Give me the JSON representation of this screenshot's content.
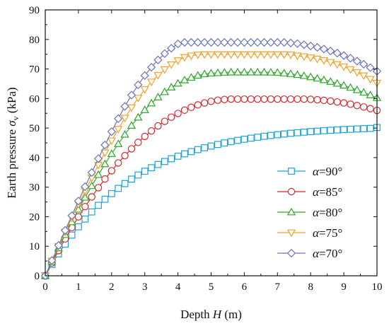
{
  "chart_data": {
    "type": "line",
    "xlabel_parts": [
      "Depth ",
      "H",
      " (m)"
    ],
    "ylabel_parts": [
      "Earth pressure ",
      "σ",
      "v",
      " (kPa)"
    ],
    "xlim": [
      0,
      10
    ],
    "ylim": [
      0,
      90
    ],
    "xticks": [
      0,
      1,
      2,
      3,
      4,
      5,
      6,
      7,
      8,
      9,
      10
    ],
    "yticks": [
      0,
      10,
      20,
      30,
      40,
      50,
      60,
      70,
      80,
      90
    ],
    "grid": false,
    "legend_position": "lower-right",
    "x": [
      0,
      0.2,
      0.4,
      0.6,
      0.8,
      1.0,
      1.2,
      1.4,
      1.6,
      1.8,
      2.0,
      2.2,
      2.4,
      2.6,
      2.8,
      3.0,
      3.2,
      3.4,
      3.6,
      3.8,
      4.0,
      4.2,
      4.4,
      4.6,
      4.8,
      5.0,
      5.2,
      5.4,
      5.6,
      5.8,
      6.0,
      6.2,
      6.4,
      6.6,
      6.8,
      7.0,
      7.2,
      7.4,
      7.6,
      7.8,
      8.0,
      8.2,
      8.4,
      8.6,
      8.8,
      9.0,
      9.2,
      9.4,
      9.6,
      9.8,
      10.0
    ],
    "series": [
      {
        "label_symbol": "α",
        "label_value": "=90°",
        "marker": "square",
        "color": "#1aa3d9",
        "values": [
          0.0,
          3.85,
          7.41,
          10.71,
          13.76,
          16.58,
          19.2,
          21.61,
          23.85,
          25.91,
          27.82,
          29.58,
          31.21,
          32.72,
          34.11,
          35.39,
          36.58,
          37.68,
          38.69,
          39.63,
          40.49,
          41.29,
          42.03,
          42.71,
          43.34,
          43.92,
          44.45,
          44.95,
          45.41,
          45.83,
          46.22,
          46.58,
          46.91,
          47.22,
          47.5,
          47.76,
          48.0,
          48.23,
          48.43,
          48.62,
          48.8,
          48.96,
          49.11,
          49.25,
          49.37,
          49.49,
          49.6,
          49.7,
          49.79,
          49.88,
          50.2
        ]
      },
      {
        "label_symbol": "α",
        "label_value": "=85°",
        "marker": "circle",
        "color": "#d9262b",
        "values": [
          0.0,
          4.35,
          8.52,
          12.51,
          16.32,
          19.95,
          23.41,
          26.7,
          29.82,
          32.77,
          35.57,
          38.2,
          40.67,
          42.99,
          45.16,
          47.17,
          49.03,
          50.73,
          52.29,
          53.7,
          54.96,
          56.07,
          57.03,
          57.85,
          58.52,
          59.05,
          59.44,
          59.68,
          59.8,
          59.8,
          59.8,
          59.8,
          59.8,
          59.8,
          59.8,
          59.8,
          59.8,
          59.8,
          59.8,
          59.8,
          59.73,
          59.58,
          59.39,
          59.14,
          58.85,
          58.5,
          58.09,
          57.64,
          57.14,
          56.58,
          55.97
        ]
      },
      {
        "label_symbol": "α",
        "label_value": "=80°",
        "marker": "triangle-up",
        "color": "#2ea82a",
        "values": [
          0.0,
          4.76,
          9.39,
          13.88,
          18.23,
          22.44,
          26.51,
          30.43,
          34.2,
          37.83,
          41.31,
          44.65,
          47.83,
          50.85,
          53.63,
          56.15,
          58.42,
          60.45,
          62.24,
          63.8,
          65.12,
          66.23,
          67.12,
          67.8,
          68.28,
          68.57,
          68.67,
          68.8,
          68.9,
          68.9,
          68.9,
          68.9,
          68.9,
          68.9,
          68.85,
          68.77,
          68.58,
          68.34,
          68.04,
          67.68,
          67.28,
          66.81,
          66.3,
          65.73,
          65.1,
          64.43,
          63.7,
          62.91,
          62.07,
          61.18,
          60.23
        ]
      },
      {
        "label_symbol": "α",
        "label_value": "=75°",
        "marker": "triangle-down",
        "color": "#f5a02a",
        "values": [
          0.0,
          5.05,
          10.0,
          14.85,
          19.6,
          24.24,
          28.77,
          33.18,
          37.48,
          41.66,
          45.72,
          49.65,
          53.43,
          56.95,
          60.17,
          63.07,
          65.64,
          67.9,
          69.85,
          71.5,
          72.86,
          73.95,
          74.5,
          74.8,
          74.9,
          74.9,
          74.9,
          74.9,
          74.9,
          74.9,
          74.9,
          74.9,
          74.9,
          74.9,
          74.9,
          74.9,
          74.9,
          74.83,
          74.5,
          74.2,
          73.84,
          73.43,
          72.91,
          72.29,
          71.58,
          70.77,
          69.86,
          68.86,
          67.76,
          66.57,
          65.28
        ]
      },
      {
        "label_symbol": "α",
        "label_value": "=70°",
        "marker": "diamond",
        "color": "#6a74c0",
        "values": [
          0.0,
          5.17,
          10.3,
          15.36,
          20.37,
          25.3,
          30.17,
          34.95,
          39.66,
          44.27,
          48.79,
          53.21,
          57.34,
          61.15,
          64.63,
          67.78,
          70.59,
          73.07,
          75.21,
          77.02,
          78.5,
          79.0,
          79.0,
          79.0,
          79.0,
          79.0,
          79.0,
          79.0,
          79.0,
          79.0,
          79.0,
          79.0,
          79.0,
          79.0,
          79.0,
          79.0,
          79.0,
          78.8,
          78.6,
          78.23,
          77.8,
          77.32,
          76.75,
          76.1,
          75.37,
          74.55,
          73.65,
          72.67,
          71.61,
          70.47,
          69.24
        ]
      }
    ]
  }
}
